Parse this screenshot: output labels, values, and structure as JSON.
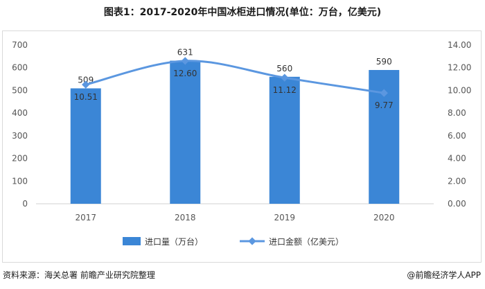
{
  "title": "图表1：2017-2020年中国冰柜进口情况(单位：万台，亿美元)",
  "source": "资料来源：海关总署 前瞻产业研究院整理",
  "credit": "@前瞻经济学人APP",
  "colors": {
    "bar": "#3b86d6",
    "line": "#5b97e0"
  },
  "chart_data": {
    "type": "bar",
    "categories": [
      "2017",
      "2018",
      "2019",
      "2020"
    ],
    "series": [
      {
        "name": "进口量（万台）",
        "type": "bar",
        "axis": "left",
        "values": [
          509,
          631,
          560,
          590
        ],
        "labels": [
          "509",
          "631",
          "560",
          "590"
        ]
      },
      {
        "name": "进口金额（亿美元）",
        "type": "line",
        "axis": "right",
        "values": [
          10.51,
          12.6,
          11.12,
          9.77
        ],
        "labels": [
          "10.51",
          "12.60",
          "11.12",
          "9.77"
        ]
      }
    ],
    "ylim_left": [
      0,
      700
    ],
    "yticks_left": [
      "0",
      "100",
      "200",
      "300",
      "400",
      "500",
      "600",
      "700"
    ],
    "ylim_right": [
      0,
      14
    ],
    "yticks_right": [
      "0.00",
      "2.00",
      "4.00",
      "6.00",
      "8.00",
      "10.00",
      "12.00",
      "14.00"
    ],
    "legend_position": "bottom",
    "grid": false
  }
}
